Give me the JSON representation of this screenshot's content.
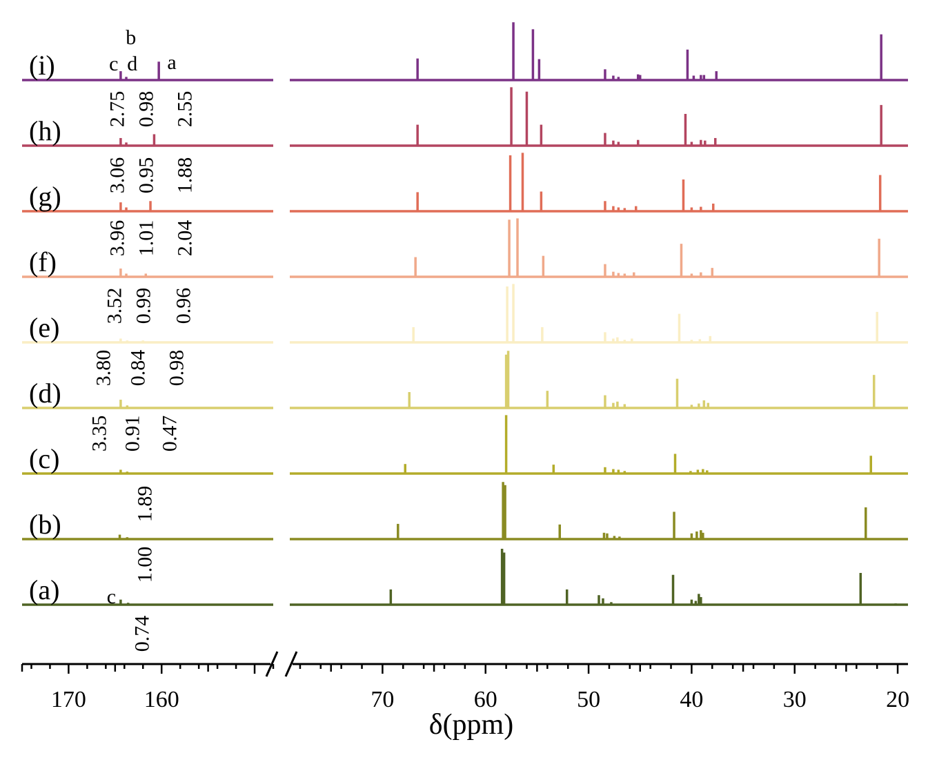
{
  "chart_data": {
    "type": "line",
    "xlabel": "δ(ppm)",
    "x_axis": {
      "reversed": true,
      "broken": true,
      "left_segment": {
        "range": [
          175,
          148
        ],
        "major_ticks": [
          170,
          160
        ],
        "tick_labels": [
          "170",
          "160"
        ]
      },
      "right_segment": {
        "range": [
          79,
          19
        ],
        "major_ticks": [
          70,
          60,
          50,
          40,
          30,
          20
        ],
        "tick_labels": [
          "70",
          "60",
          "50",
          "40",
          "30",
          "20"
        ]
      }
    },
    "grid": false,
    "series": [
      {
        "label": "(a)",
        "color": "#4f6324",
        "peaks": [
          [
            164.4,
            0.08
          ],
          [
            163.6,
            0.03
          ],
          [
            69.2,
            0.24
          ],
          [
            58.4,
            0.88
          ],
          [
            58.2,
            0.82
          ],
          [
            52.1,
            0.24
          ],
          [
            49.0,
            0.15
          ],
          [
            48.6,
            0.1
          ],
          [
            47.8,
            0.04
          ],
          [
            41.8,
            0.47
          ],
          [
            40.0,
            0.08
          ],
          [
            39.6,
            0.06
          ],
          [
            39.3,
            0.17
          ],
          [
            39.1,
            0.12
          ],
          [
            23.6,
            0.5
          ],
          [
            20.2,
            0.02
          ]
        ]
      },
      {
        "label": "(b)",
        "color": "#8a8b22",
        "peaks": [
          [
            164.5,
            0.07
          ],
          [
            163.7,
            0.03
          ],
          [
            68.5,
            0.24
          ],
          [
            58.3,
            0.9
          ],
          [
            58.1,
            0.85
          ],
          [
            52.8,
            0.23
          ],
          [
            48.5,
            0.1
          ],
          [
            48.2,
            0.09
          ],
          [
            47.5,
            0.05
          ],
          [
            47.0,
            0.04
          ],
          [
            41.7,
            0.43
          ],
          [
            40.0,
            0.09
          ],
          [
            39.5,
            0.12
          ],
          [
            39.1,
            0.14
          ],
          [
            38.9,
            0.1
          ],
          [
            23.1,
            0.5
          ]
        ]
      },
      {
        "label": "(c)",
        "color": "#b3ac2a",
        "peaks": [
          [
            164.4,
            0.06
          ],
          [
            163.7,
            0.03
          ],
          [
            67.8,
            0.15
          ],
          [
            58.0,
            0.92
          ],
          [
            53.4,
            0.14
          ],
          [
            48.4,
            0.1
          ],
          [
            47.6,
            0.07
          ],
          [
            47.1,
            0.06
          ],
          [
            46.5,
            0.04
          ],
          [
            41.6,
            0.31
          ],
          [
            40.1,
            0.04
          ],
          [
            39.4,
            0.06
          ],
          [
            38.9,
            0.07
          ],
          [
            38.5,
            0.05
          ],
          [
            22.6,
            0.28
          ]
        ]
      },
      {
        "label": "(d)",
        "color": "#d8ce6e",
        "peaks": [
          [
            164.4,
            0.13
          ],
          [
            163.7,
            0.04
          ],
          [
            67.4,
            0.25
          ],
          [
            58.0,
            0.84
          ],
          [
            57.8,
            0.9
          ],
          [
            54.0,
            0.27
          ],
          [
            48.4,
            0.2
          ],
          [
            47.6,
            0.08
          ],
          [
            47.2,
            0.1
          ],
          [
            46.5,
            0.06
          ],
          [
            41.4,
            0.46
          ],
          [
            40.0,
            0.05
          ],
          [
            39.3,
            0.07
          ],
          [
            38.8,
            0.12
          ],
          [
            38.4,
            0.08
          ],
          [
            22.3,
            0.52
          ]
        ]
      },
      {
        "label": "(e)",
        "color": "#faeec4",
        "peaks": [
          [
            164.4,
            0.06
          ],
          [
            163.7,
            0.03
          ],
          [
            162.0,
            0.03
          ],
          [
            67.0,
            0.24
          ],
          [
            57.9,
            0.88
          ],
          [
            57.3,
            0.92
          ],
          [
            54.5,
            0.24
          ],
          [
            48.4,
            0.16
          ],
          [
            47.6,
            0.06
          ],
          [
            47.2,
            0.08
          ],
          [
            46.5,
            0.04
          ],
          [
            45.8,
            0.06
          ],
          [
            41.2,
            0.45
          ],
          [
            40.0,
            0.04
          ],
          [
            39.2,
            0.05
          ],
          [
            38.2,
            0.1
          ],
          [
            22.0,
            0.48
          ]
        ]
      },
      {
        "label": "(f)",
        "color": "#f0a98a",
        "peaks": [
          [
            164.4,
            0.13
          ],
          [
            163.8,
            0.05
          ],
          [
            161.7,
            0.05
          ],
          [
            66.8,
            0.31
          ],
          [
            57.7,
            0.9
          ],
          [
            56.9,
            0.92
          ],
          [
            54.4,
            0.33
          ],
          [
            48.4,
            0.2
          ],
          [
            47.6,
            0.08
          ],
          [
            47.1,
            0.06
          ],
          [
            46.5,
            0.05
          ],
          [
            45.6,
            0.07
          ],
          [
            41.0,
            0.52
          ],
          [
            40.0,
            0.05
          ],
          [
            39.1,
            0.07
          ],
          [
            38.0,
            0.14
          ],
          [
            21.8,
            0.6
          ]
        ]
      },
      {
        "label": "(g)",
        "color": "#e06d57",
        "peaks": [
          [
            164.4,
            0.14
          ],
          [
            163.8,
            0.06
          ],
          [
            161.2,
            0.16
          ],
          [
            66.6,
            0.3
          ],
          [
            57.6,
            0.88
          ],
          [
            56.4,
            0.92
          ],
          [
            54.6,
            0.31
          ],
          [
            48.4,
            0.16
          ],
          [
            47.6,
            0.08
          ],
          [
            47.1,
            0.06
          ],
          [
            46.5,
            0.05
          ],
          [
            45.4,
            0.08
          ],
          [
            40.8,
            0.5
          ],
          [
            40.0,
            0.06
          ],
          [
            39.1,
            0.07
          ],
          [
            37.9,
            0.12
          ],
          [
            21.7,
            0.57
          ]
        ]
      },
      {
        "label": "(h)",
        "color": "#b34560",
        "peaks": [
          [
            164.4,
            0.12
          ],
          [
            163.8,
            0.05
          ],
          [
            160.8,
            0.18
          ],
          [
            66.6,
            0.33
          ],
          [
            57.5,
            0.92
          ],
          [
            56.0,
            0.85
          ],
          [
            54.6,
            0.33
          ],
          [
            48.4,
            0.2
          ],
          [
            47.6,
            0.08
          ],
          [
            47.1,
            0.06
          ],
          [
            45.2,
            0.09
          ],
          [
            40.6,
            0.5
          ],
          [
            40.0,
            0.06
          ],
          [
            39.1,
            0.09
          ],
          [
            38.7,
            0.08
          ],
          [
            37.7,
            0.12
          ],
          [
            21.6,
            0.64
          ]
        ]
      },
      {
        "label": "(i)",
        "color": "#7b3286",
        "peaks": [
          [
            164.4,
            0.14
          ],
          [
            163.8,
            0.05
          ],
          [
            160.3,
            0.29
          ],
          [
            66.6,
            0.34
          ],
          [
            57.3,
            0.91
          ],
          [
            55.4,
            0.8
          ],
          [
            54.8,
            0.33
          ],
          [
            48.4,
            0.17
          ],
          [
            47.6,
            0.07
          ],
          [
            47.1,
            0.05
          ],
          [
            45.2,
            0.09
          ],
          [
            45.0,
            0.08
          ],
          [
            40.4,
            0.48
          ],
          [
            39.8,
            0.07
          ],
          [
            39.1,
            0.08
          ],
          [
            38.8,
            0.08
          ],
          [
            37.6,
            0.14
          ],
          [
            21.6,
            0.72
          ]
        ]
      }
    ],
    "annotations": {
      "peak_letters": [
        {
          "text": "c",
          "series": "(i)",
          "at": 165.0
        },
        {
          "text": "b",
          "series": "(i)",
          "at": 163.3
        },
        {
          "text": "d",
          "series": "(i)",
          "at": 163.0
        },
        {
          "text": "a",
          "series": "(i)",
          "at": 159.2
        },
        {
          "text": "c",
          "series": "(a)",
          "at": 165.1
        }
      ],
      "integrals": [
        {
          "series": "(h)",
          "values": [
            "2.75",
            "0.98",
            "2.55"
          ]
        },
        {
          "series": "(g)",
          "values": [
            "3.06",
            "0.95",
            "1.88"
          ]
        },
        {
          "series": "(f)",
          "values": [
            "3.96",
            "1.01",
            "2.04"
          ]
        },
        {
          "series": "(e)",
          "values": [
            "3.52",
            "0.99",
            "0.96"
          ]
        },
        {
          "series": "(d)",
          "values": [
            "3.80",
            "0.84",
            "0.98"
          ]
        },
        {
          "series": "(c)",
          "values": [
            "3.35",
            "0.91",
            "0.47"
          ]
        },
        {
          "series": "(b)",
          "values": [
            "1.89"
          ]
        },
        {
          "series": "(a)",
          "values": [
            "1.00"
          ]
        },
        {
          "series": "(a)",
          "values": [
            "0.74"
          ]
        }
      ]
    }
  }
}
